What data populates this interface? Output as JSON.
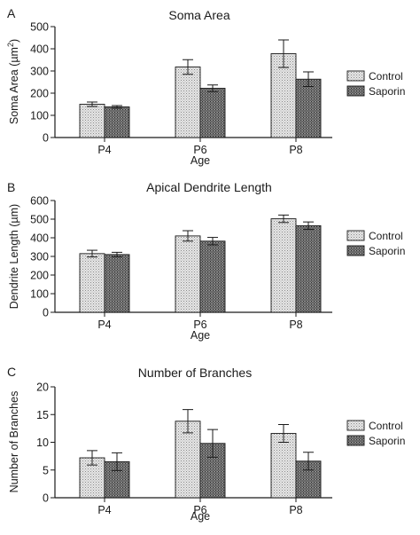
{
  "chart_data": [
    {
      "type": "bar",
      "panel": "A",
      "title": "Soma Area",
      "ylabel": "Soma Area (µm²)",
      "ylabel_main": "Soma Area (µm",
      "ylabel_sup": "2",
      "ylabel_close": ")",
      "xlabel": "Age",
      "categories": [
        "P4",
        "P6",
        "P8"
      ],
      "ylim": [
        0,
        500
      ],
      "yticks": [
        0,
        100,
        200,
        300,
        400,
        500
      ],
      "series": [
        {
          "name": "Control",
          "values": [
            150,
            318,
            378
          ],
          "errors": [
            10,
            33,
            62
          ]
        },
        {
          "name": "Saporin",
          "values": [
            138,
            222,
            263
          ],
          "errors": [
            6,
            15,
            33
          ]
        }
      ],
      "legend": "right"
    },
    {
      "type": "bar",
      "panel": "B",
      "title": "Apical Dendrite Length",
      "ylabel": "Dendrite Length (µm)",
      "xlabel": "Age",
      "categories": [
        "P4",
        "P6",
        "P8"
      ],
      "ylim": [
        0,
        600
      ],
      "yticks": [
        0,
        100,
        200,
        300,
        400,
        500,
        600
      ],
      "series": [
        {
          "name": "Control",
          "values": [
            315,
            410,
            502
          ],
          "errors": [
            18,
            28,
            20
          ]
        },
        {
          "name": "Saporin",
          "values": [
            310,
            382,
            465
          ],
          "errors": [
            12,
            20,
            20
          ]
        }
      ],
      "legend": "right"
    },
    {
      "type": "bar",
      "panel": "C",
      "title": "Number of Branches",
      "ylabel": "Number of Branches",
      "xlabel": "Age",
      "categories": [
        "P4",
        "P6",
        "P8"
      ],
      "ylim": [
        0,
        20
      ],
      "yticks": [
        0,
        5,
        10,
        15,
        20
      ],
      "series": [
        {
          "name": "Control",
          "values": [
            7.2,
            13.8,
            11.6
          ],
          "errors": [
            1.3,
            2.1,
            1.6
          ]
        },
        {
          "name": "Saporin",
          "values": [
            6.5,
            9.8,
            6.6
          ],
          "errors": [
            1.6,
            2.5,
            1.6
          ]
        }
      ],
      "legend": "right"
    }
  ]
}
